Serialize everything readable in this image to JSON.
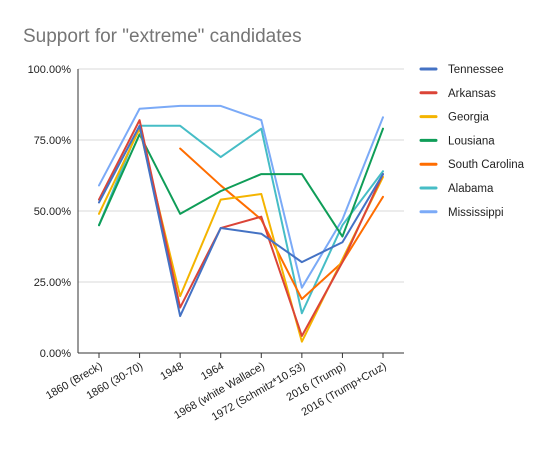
{
  "chart_data": {
    "type": "line",
    "title": "Support for \"extreme\" candidates",
    "xlabel": "",
    "ylabel": "",
    "categories": [
      "1860 (Breck)",
      "1860 (30-70)",
      "1948",
      "1964",
      "1968 (white Wallace)",
      "1972 (Schmitz*10.53)",
      "2016 (Trump)",
      "2016 (Trump+Cruz)"
    ],
    "ylim": [
      0,
      1
    ],
    "yticks": [
      0,
      0.25,
      0.5,
      0.75,
      1
    ],
    "ytick_labels": [
      "0.00%",
      "25.00%",
      "50.00%",
      "75.00%",
      "100.00%"
    ],
    "grid": true,
    "legend": "right",
    "series": [
      {
        "name": "Tennessee",
        "color": "#4472c4",
        "values": [
          0.53,
          0.8,
          0.13,
          0.44,
          0.42,
          0.32,
          0.39,
          0.63
        ]
      },
      {
        "name": "Arkansas",
        "color": "#db4437",
        "values": [
          0.54,
          0.82,
          0.16,
          0.44,
          0.48,
          0.06,
          0.32,
          0.63
        ]
      },
      {
        "name": "Georgia",
        "color": "#f4b400",
        "values": [
          0.49,
          0.79,
          0.2,
          0.54,
          0.56,
          0.04,
          0.33,
          0.62
        ]
      },
      {
        "name": "Lousiana",
        "color": "#0f9d58",
        "values": [
          0.45,
          0.77,
          0.49,
          0.57,
          0.63,
          0.63,
          0.41,
          0.79
        ]
      },
      {
        "name": "South Carolina",
        "color": "#ff6d00",
        "values": [
          null,
          null,
          0.72,
          0.59,
          0.47,
          0.19,
          0.32,
          0.55
        ]
      },
      {
        "name": "Alabama",
        "color": "#46bdc6",
        "values": [
          0.45,
          0.8,
          0.8,
          0.69,
          0.79,
          0.14,
          0.45,
          0.64
        ]
      },
      {
        "name": "Mississippi",
        "color": "#7baaf7",
        "values": [
          0.59,
          0.86,
          0.87,
          0.87,
          0.82,
          0.23,
          0.47,
          0.83
        ]
      }
    ]
  }
}
